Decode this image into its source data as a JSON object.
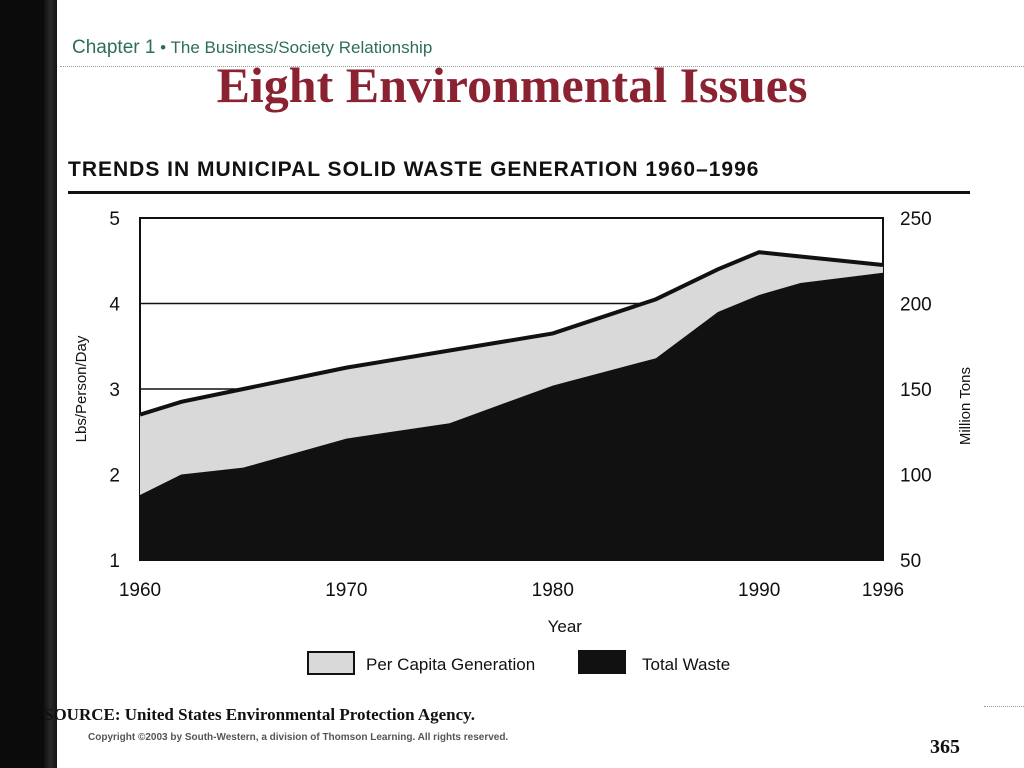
{
  "header": {
    "chapter_label": "Chapter 1",
    "chapter_subtitle": " • The Business/Society Relationship",
    "title": "Eight Environmental Issues"
  },
  "figure": {
    "title": "TRENDS IN MUNICIPAL SOLID WASTE GENERATION 1960–1996",
    "source": "SOURCE: United States Environmental Protection Agency."
  },
  "footer": {
    "copyright": "Copyright ©2003 by South-Western, a division of Thomson Learning.  All rights reserved.",
    "page_number": "365"
  },
  "colors": {
    "title": "#8b2232",
    "chapter": "#2e6d5c",
    "per_capita_fill": "#d9d9d9",
    "total_waste_fill": "#111111"
  },
  "chart_data": {
    "type": "area",
    "title": "TRENDS IN MUNICIPAL SOLID WASTE GENERATION 1960–1996",
    "xlabel": "Year",
    "ylabel": "Lbs/Person/Day",
    "y2label": "Million Tons",
    "x_ticks": [
      "1960",
      "1970",
      "1980",
      "1990",
      "1996"
    ],
    "xlim": [
      1960,
      1996
    ],
    "ylim": [
      1,
      5
    ],
    "y_ticks": [
      "1",
      "2",
      "3",
      "4",
      "5"
    ],
    "y2lim": [
      50,
      250
    ],
    "y2_ticks": [
      "50",
      "100",
      "150",
      "200",
      "250"
    ],
    "grid_y": [
      3,
      4
    ],
    "series": [
      {
        "name": "Per Capita Generation",
        "axis": "left",
        "x": [
          1960,
          1962,
          1965,
          1970,
          1975,
          1980,
          1985,
          1988,
          1990,
          1992,
          1994,
          1996
        ],
        "values": [
          2.7,
          2.85,
          3.0,
          3.25,
          3.45,
          3.65,
          4.05,
          4.4,
          4.6,
          4.55,
          4.5,
          4.45
        ]
      },
      {
        "name": "Total Waste",
        "axis": "right",
        "x": [
          1960,
          1962,
          1965,
          1970,
          1975,
          1980,
          1985,
          1988,
          1990,
          1992,
          1994,
          1996
        ],
        "values": [
          88,
          100,
          104,
          121,
          130,
          152,
          168,
          195,
          205,
          212,
          215,
          218
        ]
      }
    ]
  }
}
